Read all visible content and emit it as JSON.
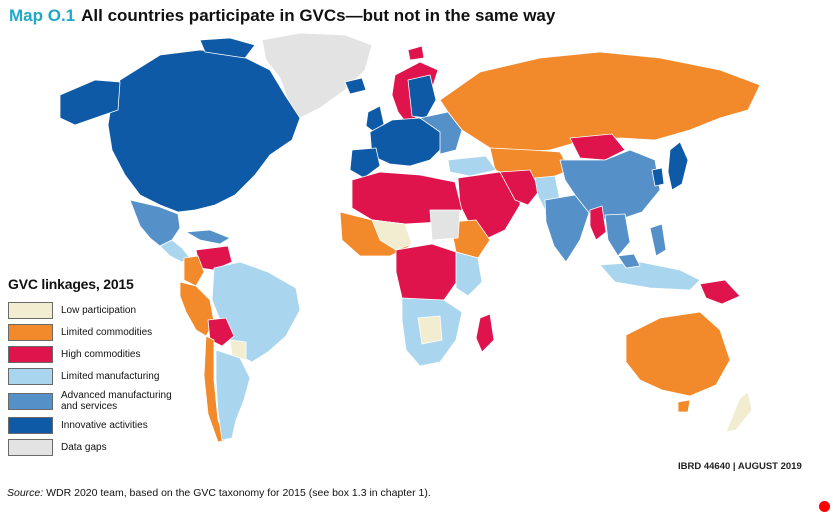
{
  "title": {
    "label": "Map O.1",
    "text": "All countries participate in GVCs—but not in the same way"
  },
  "legend": {
    "title": "GVC linkages, 2015",
    "items": [
      {
        "label": "Low participation",
        "color": "#f2ecd0"
      },
      {
        "label": "Limited commodities",
        "color": "#f2892a"
      },
      {
        "label": "High commodities",
        "color": "#e0144c"
      },
      {
        "label": "Limited manufacturing",
        "color": "#a9d6ee"
      },
      {
        "label": "Advanced manufacturing and services",
        "color": "#5590c8"
      },
      {
        "label": "Innovative activities",
        "color": "#0f5aa6"
      },
      {
        "label": "Data gaps",
        "color": "#e3e3e3"
      }
    ]
  },
  "map_id": "IBRD 44640 | AUGUST 2019",
  "source": {
    "prefix": "Source:",
    "text": "WDR 2020 team, based on the GVC taxonomy for 2015 (see box 1.3 in chapter 1)."
  },
  "colors": {
    "ocean": "#ffffff",
    "border": "#ffffff",
    "accent": "#1fa8c9",
    "marker": "#ff0000"
  }
}
